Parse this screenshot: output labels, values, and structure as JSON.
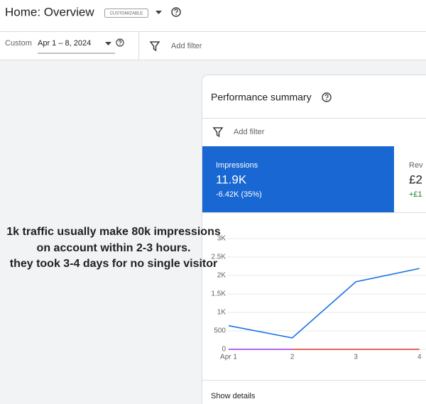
{
  "header": {
    "title": "Home: Overview",
    "badge": "CUSTOMIZABLE"
  },
  "toolbar": {
    "range_label": "Custom",
    "date_range": "Apr 1 – 8, 2024",
    "filter": "Add filter"
  },
  "card": {
    "title": "Performance summary",
    "filter": "Add filter",
    "metrics": [
      {
        "label": "Impressions",
        "value": "11.9K",
        "change": "-6.42K (35%)"
      },
      {
        "label": "Rev",
        "value": "£2",
        "change": "+£1"
      }
    ],
    "footer": "Show details"
  },
  "annotation": [
    "1k traffic usually make 80k impressions",
    "on account within 2-3 hours.",
    "they took 3-4 days for no single visitor"
  ],
  "chart_data": {
    "type": "line",
    "categories": [
      "Apr 1",
      "2",
      "3",
      "4"
    ],
    "series": [
      {
        "color": "#9334e6",
        "values": [
          0,
          0,
          null,
          null
        ]
      },
      {
        "color": "#d93025",
        "values": [
          null,
          0,
          0,
          0
        ]
      },
      {
        "color": "#1a73e8",
        "values": [
          640,
          310,
          1830,
          2190
        ]
      }
    ],
    "ylim": [
      0,
      3000
    ],
    "yticks": [
      0,
      500,
      {
        "value": 1000,
        "label": "1K"
      },
      {
        "value": 1500,
        "label": "1.5K"
      },
      {
        "value": 2000,
        "label": "2K"
      },
      {
        "value": 2500,
        "label": "2.5K"
      },
      {
        "value": 3000,
        "label": "3K"
      }
    ],
    "grid": true
  }
}
